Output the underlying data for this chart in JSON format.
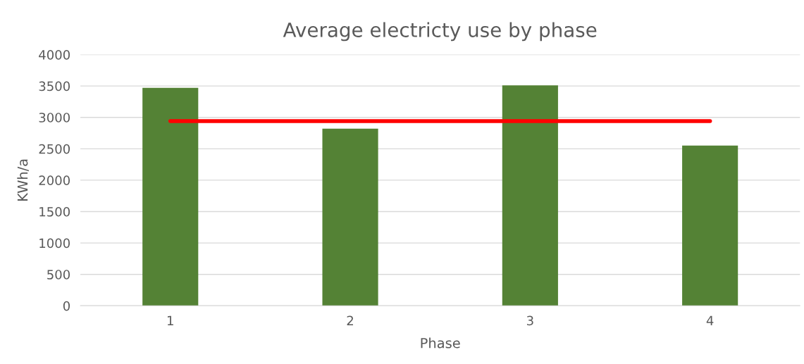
{
  "chart_data": {
    "type": "bar",
    "title": "Average electricty use by phase",
    "xlabel": "Phase",
    "ylabel": "KWh/a",
    "categories": [
      "1",
      "2",
      "3",
      "4"
    ],
    "series": [
      {
        "color": "#548235",
        "values": [
          3470,
          2820,
          3510,
          2550
        ]
      },
      {
        "type": "line",
        "color": "#ff0000",
        "values": [
          2940,
          2940,
          2940,
          2940
        ]
      }
    ],
    "ylim": [
      0,
      4000
    ],
    "yticks": [
      0,
      500,
      1000,
      1500,
      2000,
      2500,
      3000,
      3500,
      4000
    ],
    "grid": "y",
    "legend": false
  }
}
